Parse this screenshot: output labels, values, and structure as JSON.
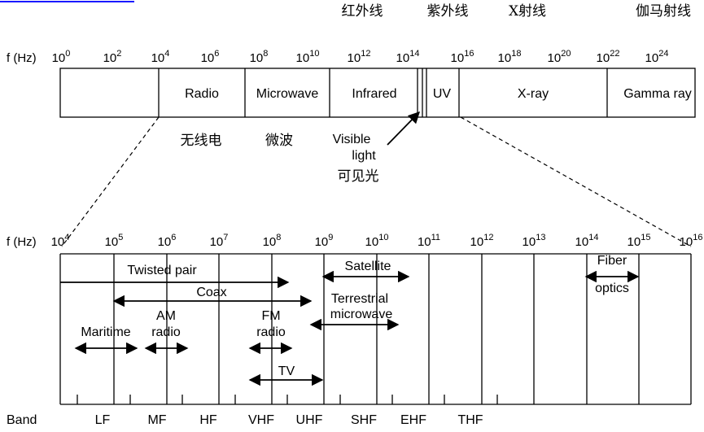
{
  "header_line_color": "#1a1aff",
  "chinese_top": {
    "infrared": "红外线",
    "ultraviolet": "紫外线",
    "xray": "X射线",
    "gamma": "伽马射线"
  },
  "top_scale": {
    "label": "f (Hz)",
    "ticks": [
      {
        "base": "10",
        "exp": "0"
      },
      {
        "base": "10",
        "exp": "2"
      },
      {
        "base": "10",
        "exp": "4"
      },
      {
        "base": "10",
        "exp": "6"
      },
      {
        "base": "10",
        "exp": "8"
      },
      {
        "base": "10",
        "exp": "10"
      },
      {
        "base": "10",
        "exp": "12"
      },
      {
        "base": "10",
        "exp": "14"
      },
      {
        "base": "10",
        "exp": "16"
      },
      {
        "base": "10",
        "exp": "18"
      },
      {
        "base": "10",
        "exp": "20"
      },
      {
        "base": "10",
        "exp": "22"
      },
      {
        "base": "10",
        "exp": "24"
      }
    ]
  },
  "spectrum": {
    "radio": "Radio",
    "microwave": "Microwave",
    "infrared": "Infrared",
    "uv": "UV",
    "xray": "X-ray",
    "gamma": "Gamma ray"
  },
  "chinese_mid": {
    "radio": "无线电",
    "microwave": "微波",
    "visible": "可见光"
  },
  "visible_light": {
    "line1": "Visible",
    "line2": "light"
  },
  "bottom_scale": {
    "label": "f (Hz)",
    "ticks": [
      {
        "base": "10",
        "exp": "4"
      },
      {
        "base": "10",
        "exp": "5"
      },
      {
        "base": "10",
        "exp": "6"
      },
      {
        "base": "10",
        "exp": "7"
      },
      {
        "base": "10",
        "exp": "8"
      },
      {
        "base": "10",
        "exp": "9"
      },
      {
        "base": "10",
        "exp": "10"
      },
      {
        "base": "10",
        "exp": "11"
      },
      {
        "base": "10",
        "exp": "12"
      },
      {
        "base": "10",
        "exp": "13"
      },
      {
        "base": "10",
        "exp": "14"
      },
      {
        "base": "10",
        "exp": "15"
      },
      {
        "base": "10",
        "exp": "16"
      }
    ]
  },
  "media": {
    "twisted_pair": "Twisted pair",
    "coax": "Coax",
    "satellite": "Satellite",
    "terrestrial_1": "Terrestrial",
    "terrestrial_2": "microwave",
    "fiber_1": "Fiber",
    "fiber_2": "optics",
    "am_1": "AM",
    "am_2": "radio",
    "fm_1": "FM",
    "fm_2": "radio",
    "maritime": "Maritime",
    "tv": "TV"
  },
  "bands": {
    "label": "Band",
    "items": [
      "LF",
      "MF",
      "HF",
      "VHF",
      "UHF",
      "SHF",
      "EHF",
      "THF"
    ]
  }
}
